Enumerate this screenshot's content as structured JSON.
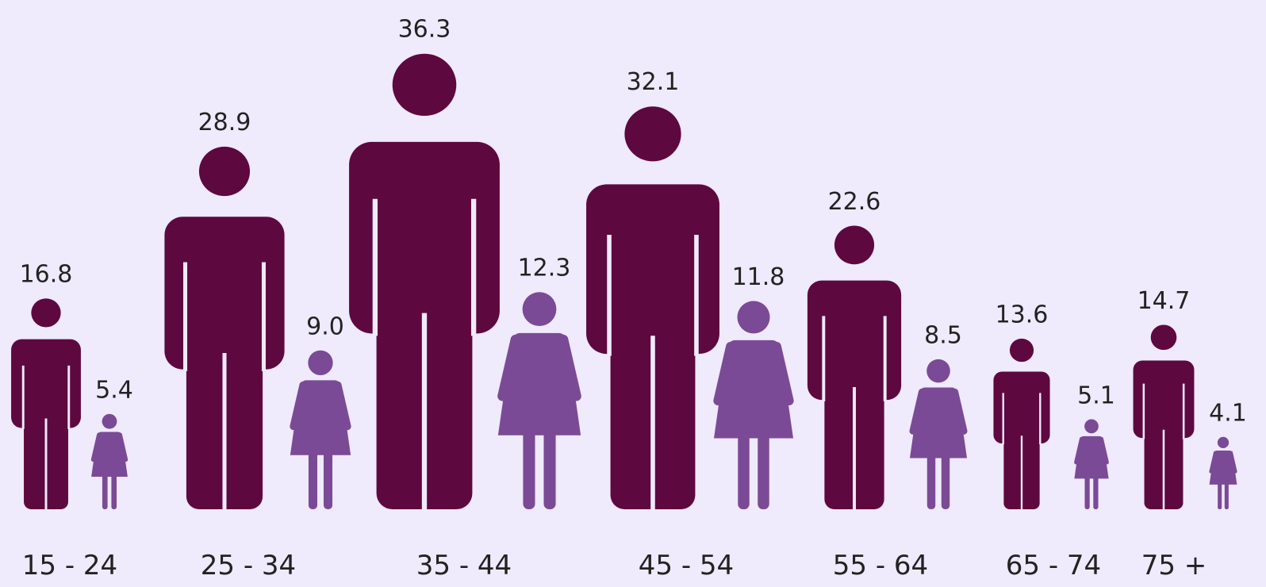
{
  "chart_data": {
    "type": "pictogram",
    "categories": [
      "15 - 24",
      "25 - 34",
      "35 - 44",
      "45 - 54",
      "55 - 64",
      "65 - 74",
      "75 +"
    ],
    "series": [
      {
        "color": "#5e0840",
        "values": [
          16.8,
          28.9,
          36.3,
          32.1,
          22.6,
          13.6,
          14.7
        ],
        "value_labels": [
          "16.8",
          "28.9",
          "36.3",
          "32.1",
          "22.6",
          "13.6",
          "14.7"
        ]
      },
      {
        "color": "#7b4a96",
        "values": [
          5.4,
          9.0,
          12.3,
          11.8,
          8.5,
          5.1,
          4.1
        ],
        "value_labels": [
          "5.4",
          "9.0",
          "12.3",
          "11.8",
          "8.5",
          "5.1",
          "4.1"
        ]
      }
    ]
  }
}
